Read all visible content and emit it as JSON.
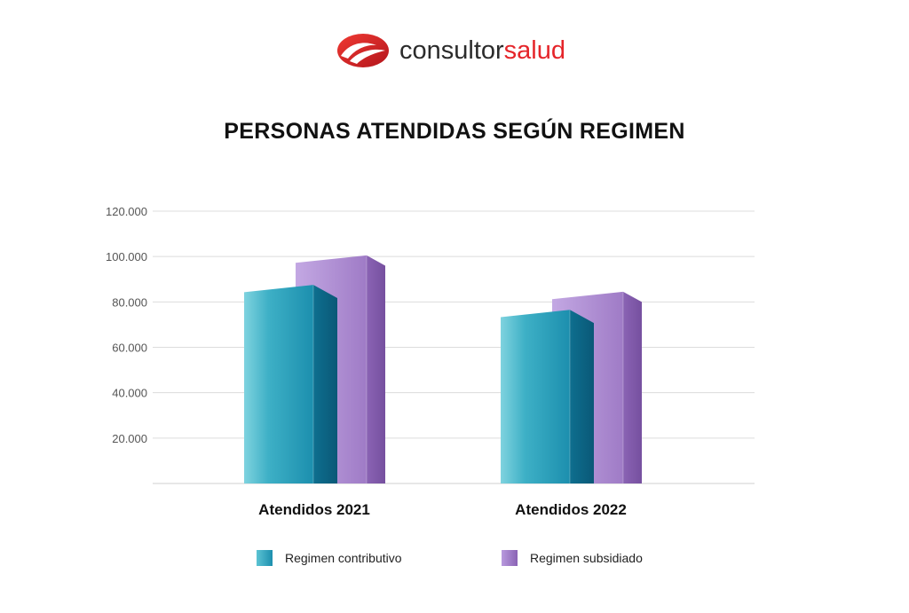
{
  "brand": {
    "name_part_a": "consultor",
    "name_part_b": "salud",
    "logo_icon": "swoosh-logo-icon",
    "color_red": "#e5252a",
    "color_dark": "#2b2b2b"
  },
  "chart_data": {
    "type": "bar",
    "style": "3d",
    "title": "PERSONAS ATENDIDAS SEGÚN REGIMEN",
    "xlabel": "",
    "ylabel": "",
    "categories": [
      "Atendidos 2021",
      "Atendidos 2022"
    ],
    "series": [
      {
        "name": "Regimen contributivo",
        "values": [
          87500,
          76500
        ],
        "color": "#1c8fae"
      },
      {
        "name": "Regimen subsidiado",
        "values": [
          100500,
          84500
        ],
        "color": "#9f7bc6"
      }
    ],
    "ylim": [
      0,
      120000
    ],
    "yticks": [
      20000,
      40000,
      60000,
      80000,
      100000,
      120000
    ],
    "ytick_labels": [
      "20.000",
      "40.000",
      "60.000",
      "80.000",
      "100.000",
      "120.000"
    ],
    "grid": true,
    "legend_position": "bottom"
  }
}
